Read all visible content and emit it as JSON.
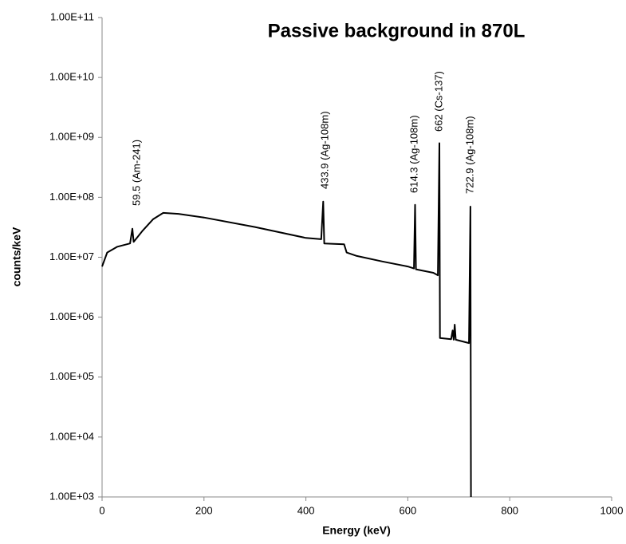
{
  "chart_data": {
    "type": "line",
    "title": "Passive background  in 870L",
    "xlabel": "Energy (keV)",
    "ylabel": "counts/keV",
    "x": [
      0,
      10,
      30,
      55,
      59.5,
      62,
      80,
      100,
      120,
      150,
      200,
      300,
      400,
      430,
      433.9,
      436,
      475,
      480,
      500,
      550,
      600,
      612,
      614.3,
      616,
      650,
      659,
      662,
      663,
      685,
      688,
      690,
      692,
      694,
      720,
      722.9,
      724
    ],
    "values": [
      7000000,
      12000000,
      15000000,
      17000000,
      30000000,
      18000000,
      28000000,
      43000000,
      55000000,
      53000000,
      46000000,
      32000000,
      21000000,
      20000000,
      85000000,
      17000000,
      16500000,
      12000000,
      10500000,
      8500000,
      7000000,
      6500000,
      75000000,
      6300000,
      5500000,
      5000000,
      800000000,
      450000,
      430000,
      600000,
      420000,
      750000,
      420000,
      370000,
      70000000,
      1000
    ],
    "color": "#000000",
    "log_y": true,
    "xlim": [
      0,
      1000
    ],
    "ylim": [
      1000,
      100000000000
    ],
    "xticks": [
      0,
      200,
      400,
      600,
      800,
      1000
    ],
    "yticks": [
      {
        "value": 1000,
        "label": "1.00E+03"
      },
      {
        "value": 10000,
        "label": "1.00E+04"
      },
      {
        "value": 100000,
        "label": "1.00E+05"
      },
      {
        "value": 1000000,
        "label": "1.00E+06"
      },
      {
        "value": 10000000,
        "label": "1.00E+07"
      },
      {
        "value": 100000000,
        "label": "1.00E+08"
      },
      {
        "value": 1000000000,
        "label": "1.00E+09"
      },
      {
        "value": 10000000000,
        "label": "1.00E+10"
      },
      {
        "value": 100000000000,
        "label": "1.00E+11"
      }
    ],
    "annotations": [
      "59.5 (Am-241)",
      "433.9 (Ag-108m)",
      "614.3 (Ag-108m)",
      "662 (Cs-137)",
      "722.9 (Ag-108m)"
    ]
  }
}
